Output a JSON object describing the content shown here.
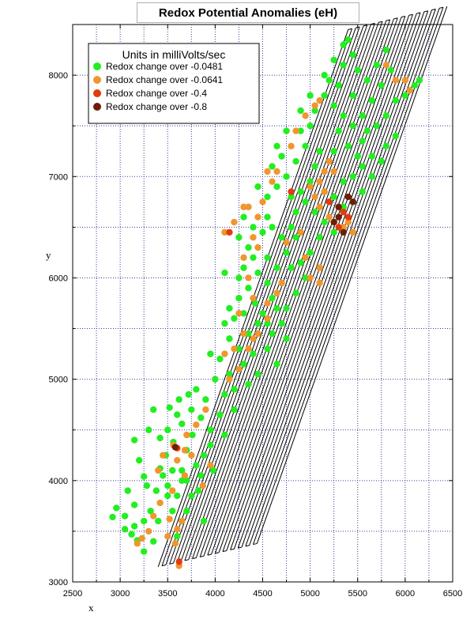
{
  "chart_data": {
    "type": "scatter",
    "title": "Redox Potential Anomalies (eH)",
    "xlabel": "x",
    "ylabel": "y",
    "xlim": [
      2500,
      6500
    ],
    "ylim": [
      3000,
      8500
    ],
    "xticks": [
      "2500",
      "3000",
      "3500",
      "4000",
      "4500",
      "5000",
      "5500",
      "6000",
      "6500"
    ],
    "yticks": [
      "3000",
      "4000",
      "5000",
      "6000",
      "7000",
      "8000"
    ],
    "grid": true,
    "legend": {
      "title": "Units in milliVolts/sec",
      "placement": "top-left"
    },
    "survey_tracks": {
      "start_corner": [
        3400,
        3150
      ],
      "end_corner": [
        5400,
        8450
      ],
      "across_direction": [
        1,
        0.22
      ],
      "line_spacing": 40,
      "line_count": 27
    },
    "series": [
      {
        "name": "Redox change over -0.0481",
        "color": "#22ee22",
        "points": [
          [
            2920,
            3640
          ],
          [
            2960,
            3730
          ],
          [
            3050,
            3520
          ],
          [
            3120,
            3470
          ],
          [
            3180,
            3410
          ],
          [
            3150,
            3760
          ],
          [
            3080,
            3900
          ],
          [
            3250,
            3600
          ],
          [
            3320,
            3700
          ],
          [
            3380,
            3900
          ],
          [
            3250,
            4040
          ],
          [
            3420,
            4120
          ],
          [
            3500,
            3950
          ],
          [
            3550,
            3700
          ],
          [
            3600,
            3850
          ],
          [
            3700,
            4000
          ],
          [
            3650,
            4100
          ],
          [
            3480,
            4250
          ],
          [
            3420,
            4420
          ],
          [
            3560,
            4380
          ],
          [
            3700,
            4300
          ],
          [
            3760,
            4450
          ],
          [
            3650,
            4560
          ],
          [
            3520,
            4720
          ],
          [
            3600,
            4650
          ],
          [
            3750,
            4700
          ],
          [
            3850,
            4620
          ],
          [
            3900,
            4800
          ],
          [
            3800,
            4900
          ],
          [
            3950,
            4500
          ],
          [
            3880,
            4250
          ],
          [
            3980,
            4100
          ],
          [
            3820,
            3900
          ],
          [
            3700,
            3700
          ],
          [
            3880,
            3600
          ],
          [
            3800,
            4150
          ],
          [
            4050,
            4650
          ],
          [
            4100,
            4850
          ],
          [
            4000,
            5000
          ],
          [
            4150,
            5050
          ],
          [
            4200,
            4900
          ],
          [
            4050,
            5200
          ],
          [
            4250,
            5300
          ],
          [
            4300,
            5150
          ],
          [
            4150,
            5400
          ],
          [
            4400,
            5250
          ],
          [
            4350,
            5450
          ],
          [
            4450,
            5550
          ],
          [
            4500,
            5650
          ],
          [
            4420,
            5750
          ],
          [
            4300,
            5650
          ],
          [
            4250,
            5800
          ],
          [
            4350,
            5900
          ],
          [
            4450,
            6050
          ],
          [
            4550,
            6200
          ],
          [
            4400,
            6200
          ],
          [
            4300,
            6100
          ],
          [
            4550,
            5950
          ],
          [
            4600,
            5800
          ],
          [
            4700,
            5950
          ],
          [
            4650,
            6100
          ],
          [
            4750,
            6250
          ],
          [
            4700,
            6400
          ],
          [
            4600,
            6500
          ],
          [
            4550,
            6600
          ],
          [
            4500,
            6450
          ],
          [
            4400,
            6500
          ],
          [
            4800,
            6500
          ],
          [
            4850,
            6650
          ],
          [
            4900,
            6850
          ],
          [
            4800,
            6800
          ],
          [
            4750,
            7000
          ],
          [
            4650,
            6900
          ],
          [
            4550,
            6800
          ],
          [
            4600,
            7100
          ],
          [
            4700,
            7200
          ],
          [
            4850,
            7150
          ],
          [
            4950,
            7300
          ],
          [
            5000,
            7500
          ],
          [
            4900,
            7450
          ],
          [
            5050,
            7650
          ],
          [
            5150,
            7800
          ],
          [
            5250,
            7700
          ],
          [
            5300,
            7900
          ],
          [
            5200,
            7950
          ],
          [
            5350,
            8100
          ],
          [
            5450,
            8200
          ],
          [
            5400,
            8350
          ],
          [
            5350,
            8300
          ],
          [
            5500,
            8050
          ],
          [
            5600,
            7950
          ],
          [
            5700,
            8100
          ],
          [
            5800,
            8250
          ],
          [
            5850,
            8050
          ],
          [
            5750,
            7900
          ],
          [
            5650,
            7750
          ],
          [
            5550,
            7600
          ],
          [
            5600,
            7450
          ],
          [
            5700,
            7500
          ],
          [
            5800,
            7600
          ],
          [
            5900,
            7750
          ],
          [
            6000,
            7800
          ],
          [
            6100,
            7900
          ],
          [
            6150,
            7950
          ],
          [
            5900,
            7400
          ],
          [
            5800,
            7300
          ],
          [
            5750,
            7150
          ],
          [
            5650,
            7200
          ],
          [
            5550,
            7100
          ],
          [
            5450,
            7000
          ],
          [
            5350,
            6950
          ],
          [
            5400,
            7300
          ],
          [
            5300,
            7450
          ],
          [
            5250,
            7250
          ],
          [
            5100,
            7250
          ],
          [
            5050,
            7100
          ],
          [
            5000,
            6950
          ],
          [
            4950,
            6750
          ],
          [
            5050,
            6650
          ],
          [
            5150,
            6550
          ],
          [
            5250,
            6450
          ],
          [
            5100,
            6400
          ],
          [
            5000,
            6250
          ],
          [
            4900,
            6150
          ],
          [
            4950,
            6000
          ],
          [
            4850,
            5850
          ],
          [
            4750,
            5700
          ],
          [
            4700,
            5550
          ],
          [
            4600,
            5450
          ],
          [
            4750,
            5400
          ],
          [
            4550,
            5300
          ],
          [
            4650,
            5150
          ],
          [
            3350,
            4700
          ],
          [
            3300,
            4500
          ],
          [
            3200,
            4200
          ],
          [
            3150,
            4400
          ],
          [
            3280,
            3950
          ],
          [
            3050,
            3650
          ],
          [
            3150,
            3550
          ],
          [
            3350,
            3400
          ],
          [
            3250,
            3300
          ],
          [
            3600,
            3450
          ],
          [
            3500,
            4500
          ],
          [
            3620,
            4800
          ],
          [
            3720,
            4850
          ],
          [
            3950,
            5250
          ],
          [
            4100,
            5550
          ],
          [
            4200,
            5600
          ],
          [
            4250,
            6000
          ],
          [
            4100,
            6050
          ],
          [
            4150,
            5700
          ],
          [
            4350,
            6300
          ],
          [
            4250,
            6400
          ],
          [
            4300,
            6600
          ],
          [
            4450,
            6900
          ],
          [
            4650,
            7300
          ],
          [
            4750,
            7450
          ],
          [
            4900,
            7650
          ],
          [
            5000,
            7800
          ],
          [
            5150,
            8000
          ],
          [
            5250,
            8150
          ],
          [
            5450,
            7800
          ],
          [
            5350,
            7600
          ],
          [
            5450,
            7500
          ],
          [
            5550,
            7350
          ],
          [
            5500,
            7200
          ],
          [
            5650,
            7000
          ],
          [
            5550,
            6850
          ],
          [
            5450,
            6750
          ],
          [
            5350,
            6700
          ],
          [
            5250,
            6800
          ],
          [
            5150,
            6850
          ],
          [
            4850,
            6400
          ],
          [
            4800,
            6100
          ],
          [
            4650,
            5700
          ],
          [
            4550,
            5550
          ],
          [
            4450,
            5050
          ],
          [
            4350,
            4950
          ],
          [
            4200,
            4700
          ],
          [
            4100,
            4450
          ],
          [
            3950,
            4350
          ],
          [
            3850,
            4050
          ],
          [
            3750,
            3850
          ],
          [
            3650,
            3600
          ],
          [
            3400,
            3600
          ],
          [
            3550,
            4100
          ],
          [
            3650,
            4000
          ],
          [
            3500,
            3850
          ],
          [
            3450,
            4050
          ]
        ]
      },
      {
        "name": "Redox change over -0.0641",
        "color": "#f0962e",
        "points": [
          [
            3180,
            3380
          ],
          [
            3230,
            3430
          ],
          [
            3300,
            3500
          ],
          [
            3350,
            3650
          ],
          [
            3420,
            3780
          ],
          [
            3520,
            3620
          ],
          [
            3600,
            3520
          ],
          [
            3650,
            3600
          ],
          [
            3580,
            3380
          ],
          [
            3620,
            3160
          ],
          [
            3500,
            3450
          ],
          [
            3550,
            3900
          ],
          [
            3600,
            4200
          ],
          [
            3700,
            4450
          ],
          [
            3680,
            4300
          ],
          [
            3750,
            4250
          ],
          [
            3560,
            4350
          ],
          [
            3400,
            4100
          ],
          [
            3450,
            4250
          ],
          [
            3680,
            4050
          ],
          [
            4150,
            5000
          ],
          [
            4250,
            5100
          ],
          [
            4350,
            5300
          ],
          [
            4400,
            5400
          ],
          [
            4450,
            5450
          ],
          [
            4550,
            5600
          ],
          [
            4650,
            5850
          ],
          [
            4700,
            5950
          ],
          [
            4550,
            5750
          ],
          [
            4400,
            5800
          ],
          [
            4350,
            6000
          ],
          [
            4300,
            6200
          ],
          [
            4400,
            6400
          ],
          [
            4450,
            6300
          ],
          [
            4200,
            6550
          ],
          [
            4100,
            6450
          ],
          [
            4300,
            6700
          ],
          [
            4500,
            6750
          ],
          [
            4600,
            6950
          ],
          [
            4550,
            7050
          ],
          [
            4650,
            7050
          ],
          [
            4800,
            7300
          ],
          [
            4850,
            7450
          ],
          [
            4950,
            7600
          ],
          [
            5050,
            7700
          ],
          [
            5100,
            7750
          ],
          [
            5000,
            6900
          ],
          [
            5050,
            6800
          ],
          [
            5100,
            6950
          ],
          [
            5150,
            7050
          ],
          [
            5200,
            7150
          ],
          [
            5250,
            7050
          ],
          [
            5150,
            6850
          ],
          [
            5100,
            6700
          ],
          [
            5200,
            6600
          ],
          [
            5300,
            6700
          ],
          [
            5250,
            6550
          ],
          [
            4950,
            6200
          ],
          [
            5000,
            6000
          ],
          [
            5100,
            5950
          ],
          [
            5100,
            6100
          ],
          [
            4900,
            6450
          ],
          [
            4750,
            6350
          ],
          [
            4250,
            5650
          ],
          [
            4300,
            5450
          ],
          [
            4200,
            5300
          ],
          [
            4100,
            5250
          ],
          [
            3900,
            4700
          ],
          [
            3800,
            4550
          ],
          [
            3870,
            3950
          ],
          [
            3950,
            4150
          ],
          [
            5350,
            6500
          ],
          [
            5450,
            6450
          ],
          [
            5400,
            6550
          ],
          [
            6000,
            7950
          ],
          [
            6050,
            7850
          ],
          [
            5900,
            7950
          ],
          [
            5800,
            8100
          ],
          [
            4450,
            6600
          ],
          [
            4350,
            6700
          ]
        ]
      },
      {
        "name": "Redox change over -0.4",
        "color": "#e03c10",
        "points": [
          [
            3600,
            4320
          ],
          [
            3620,
            3200
          ],
          [
            4800,
            6850
          ],
          [
            4150,
            6450
          ],
          [
            5200,
            6750
          ],
          [
            5300,
            6500
          ],
          [
            5350,
            6650
          ],
          [
            5400,
            6600
          ]
        ]
      },
      {
        "name": "Redox change over -0.8",
        "color": "#6e1e08",
        "points": [
          [
            3580,
            4330
          ],
          [
            5250,
            6550
          ],
          [
            5300,
            6600
          ],
          [
            5350,
            6450
          ],
          [
            5400,
            6800
          ],
          [
            5450,
            6750
          ],
          [
            5300,
            6700
          ]
        ]
      }
    ]
  }
}
